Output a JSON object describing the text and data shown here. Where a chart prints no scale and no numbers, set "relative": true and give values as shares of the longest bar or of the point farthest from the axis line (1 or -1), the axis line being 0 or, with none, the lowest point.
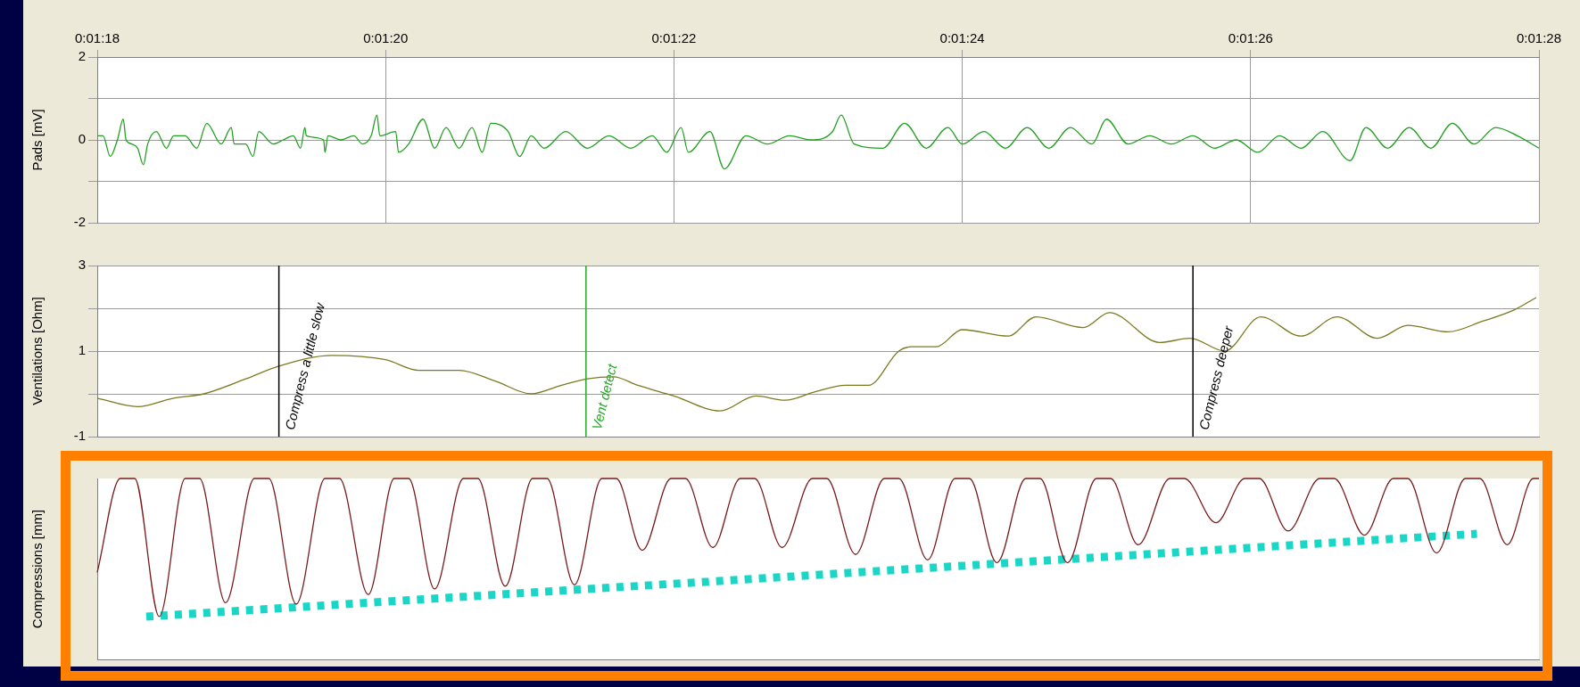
{
  "chart_data": [
    {
      "type": "line",
      "ylabel": "Pads [mV]",
      "xlim": [
        78,
        88
      ],
      "xticks": [
        {
          "value": 78,
          "label": "0:01:18"
        },
        {
          "value": 80,
          "label": "0:01:20"
        },
        {
          "value": 82,
          "label": "0:01:22"
        },
        {
          "value": 84,
          "label": "0:01:24"
        },
        {
          "value": 86,
          "label": "0:01:26"
        },
        {
          "value": 88,
          "label": "0:01:28"
        }
      ],
      "ylim": [
        -2,
        2
      ],
      "yticks": [
        -2,
        {
          "value": -1,
          "label": null
        },
        0,
        {
          "value": 1,
          "label": null
        },
        2
      ],
      "grid": true,
      "series": [
        {
          "color": "#22a022",
          "x": [
            78.0,
            78.04,
            78.09,
            78.14,
            78.18,
            78.2,
            78.24,
            78.28,
            78.32,
            78.35,
            78.41,
            78.48,
            78.53,
            78.61,
            78.69,
            78.76,
            78.86,
            78.93,
            78.95,
            79.03,
            79.08,
            79.12,
            79.22,
            79.29,
            79.36,
            79.41,
            79.44,
            79.45,
            79.57,
            79.58,
            79.6,
            79.69,
            79.78,
            79.84,
            79.9,
            79.94,
            79.96,
            80.07,
            80.09,
            80.16,
            80.26,
            80.34,
            80.42,
            80.51,
            80.6,
            80.67,
            80.73,
            80.85,
            80.93,
            81.01,
            81.1,
            81.25,
            81.4,
            81.55,
            81.7,
            81.85,
            81.95,
            82.05,
            82.1,
            82.25,
            82.35,
            82.5,
            82.65,
            82.8,
            82.95,
            83.1,
            83.16,
            83.25,
            83.45,
            83.6,
            83.75,
            83.9,
            84.0,
            84.15,
            84.3,
            84.45,
            84.6,
            84.75,
            84.9,
            85.0,
            85.15,
            85.3,
            85.45,
            85.6,
            85.75,
            85.9,
            86.05,
            86.2,
            86.35,
            86.5,
            86.69,
            86.8,
            86.95,
            87.1,
            87.25,
            87.4,
            87.55,
            87.7,
            87.85,
            88.0
          ],
          "values": [
            0.1,
            0.1,
            -0.4,
            0.0,
            0.5,
            0.0,
            -0.1,
            -0.2,
            -0.6,
            -0.1,
            0.2,
            -0.2,
            0.1,
            0.1,
            -0.2,
            0.4,
            -0.1,
            0.3,
            -0.1,
            -0.1,
            -0.4,
            0.2,
            -0.1,
            0.0,
            0.1,
            -0.2,
            0.3,
            0.1,
            0.0,
            -0.3,
            0.1,
            0.0,
            0.1,
            -0.1,
            0.1,
            0.6,
            0.1,
            0.2,
            -0.3,
            -0.1,
            0.5,
            -0.2,
            0.3,
            -0.2,
            0.3,
            -0.3,
            0.4,
            0.2,
            -0.4,
            0.1,
            -0.2,
            0.2,
            -0.2,
            0.1,
            -0.2,
            0.1,
            -0.3,
            0.3,
            -0.3,
            0.2,
            -0.7,
            0.1,
            -0.1,
            0.1,
            0.0,
            0.2,
            0.6,
            -0.1,
            -0.2,
            0.4,
            -0.2,
            0.3,
            -0.1,
            0.2,
            -0.2,
            0.3,
            -0.2,
            0.3,
            -0.1,
            0.5,
            -0.1,
            0.1,
            -0.1,
            0.1,
            -0.2,
            0.0,
            -0.3,
            0.1,
            -0.2,
            0.2,
            -0.5,
            0.3,
            -0.2,
            0.3,
            -0.2,
            0.4,
            -0.1,
            0.3,
            0.1,
            -0.2
          ]
        }
      ]
    },
    {
      "type": "line",
      "ylabel": "Ventilations [Ohm]",
      "xlim": [
        78,
        88
      ],
      "xticks": [
        {
          "value": 78,
          "label": null
        },
        {
          "value": 80,
          "label": null
        },
        {
          "value": 82,
          "label": null
        },
        {
          "value": 84,
          "label": null
        },
        {
          "value": 86,
          "label": null
        },
        {
          "value": 88,
          "label": null
        }
      ],
      "ylim": [
        -1,
        3
      ],
      "yticks": [
        -1,
        {
          "value": 0,
          "label": null
        },
        1,
        {
          "value": 2,
          "label": null
        },
        3
      ],
      "grid": true,
      "tick_labels": "y",
      "ref_lines": [
        {
          "axis": "x",
          "value": 79.26,
          "label": "Compress a little slow",
          "color": "#000000"
        },
        {
          "axis": "x",
          "value": 81.39,
          "label": "Vent detect",
          "color": "#22aa22"
        },
        {
          "axis": "x",
          "value": 85.6,
          "label": "Compress deeper",
          "color": "#000000"
        }
      ],
      "series": [
        {
          "color": "#7a7a20",
          "x": [
            78.0,
            78.28,
            78.53,
            78.74,
            79.03,
            79.26,
            79.63,
            80.0,
            80.23,
            80.51,
            80.76,
            81.01,
            81.22,
            81.4,
            81.58,
            81.75,
            82.0,
            82.32,
            82.57,
            82.77,
            82.98,
            83.19,
            83.35,
            83.56,
            83.65,
            83.82,
            84.0,
            84.32,
            84.51,
            84.84,
            85.02,
            85.37,
            85.58,
            85.82,
            86.07,
            86.35,
            86.6,
            86.88,
            87.09,
            87.37,
            87.61,
            87.82,
            87.98
          ],
          "values": [
            -0.1,
            -0.3,
            -0.1,
            0.0,
            0.35,
            0.65,
            0.9,
            0.8,
            0.55,
            0.55,
            0.3,
            0.0,
            0.2,
            0.35,
            0.4,
            0.2,
            -0.05,
            -0.4,
            -0.05,
            -0.15,
            0.05,
            0.2,
            0.2,
            1.0,
            1.1,
            1.1,
            1.5,
            1.35,
            1.8,
            1.55,
            1.9,
            1.2,
            1.3,
            1.0,
            1.8,
            1.35,
            1.8,
            1.3,
            1.6,
            1.45,
            1.7,
            1.95,
            2.25
          ]
        }
      ]
    },
    {
      "type": "line",
      "ylabel": "Compressions [mm]",
      "xlim": [
        78,
        88
      ],
      "xticks": [
        {
          "value": 78,
          "label": null
        },
        {
          "value": 80,
          "label": null
        },
        {
          "value": 82,
          "label": null
        },
        {
          "value": 84,
          "label": null
        },
        {
          "value": 86,
          "label": null
        },
        {
          "value": 88,
          "label": null
        }
      ],
      "relative": true,
      "grid": "x",
      "tick_labels": false,
      "series": [
        {
          "color": "#7a1a1a",
          "x": [
            78.0,
            78.16,
            78.26,
            78.43,
            78.61,
            78.71,
            78.89,
            79.09,
            79.19,
            79.38,
            79.58,
            79.68,
            79.88,
            80.06,
            80.16,
            80.34,
            80.54,
            80.64,
            80.83,
            81.02,
            81.12,
            81.31,
            81.5,
            81.6,
            81.78,
            81.98,
            82.08,
            82.27,
            82.46,
            82.56,
            82.75,
            82.96,
            83.06,
            83.26,
            83.46,
            83.56,
            83.76,
            83.95,
            84.05,
            84.24,
            84.44,
            84.54,
            84.73,
            84.93,
            85.03,
            85.22,
            85.44,
            85.54,
            85.76,
            85.96,
            86.06,
            86.26,
            86.48,
            86.58,
            86.79,
            86.99,
            87.09,
            87.29,
            87.49,
            87.59,
            87.78,
            87.96,
            88.0
          ],
          "values": [
            -0.68,
            0,
            0,
            -1.0,
            0,
            0,
            -0.9,
            0,
            0,
            -0.91,
            0,
            0,
            -0.84,
            0,
            0,
            -0.8,
            0,
            0,
            -0.78,
            0,
            0,
            -0.77,
            0,
            0,
            -0.52,
            0,
            0,
            -0.5,
            0,
            0,
            -0.5,
            0,
            0,
            -0.55,
            0,
            0,
            -0.59,
            0,
            0,
            -0.61,
            0,
            0,
            -0.61,
            0,
            0,
            -0.48,
            0,
            0,
            -0.32,
            0,
            0,
            -0.38,
            0,
            0,
            -0.41,
            0,
            0,
            -0.54,
            0,
            0,
            -0.48,
            0,
            0
          ]
        },
        {
          "type": "line",
          "color": "#1ad6c6",
          "line_style": "dotted",
          "x": [
            78.34,
            87.57
          ],
          "values": [
            -1.0,
            -0.4
          ]
        }
      ]
    }
  ]
}
